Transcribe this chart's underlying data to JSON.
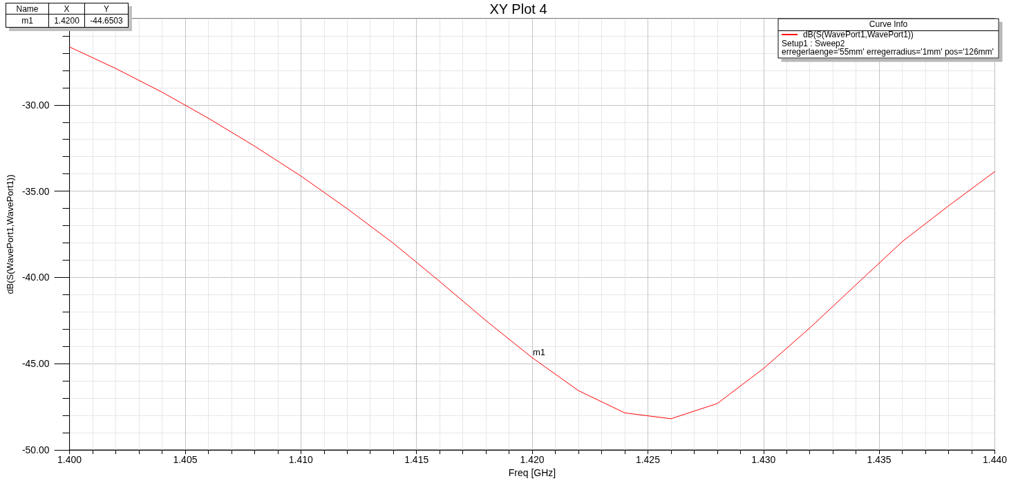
{
  "chart_data": {
    "type": "line",
    "title": "XY Plot 4",
    "xlabel": "Freq [GHz]",
    "ylabel": "dB(S(WavePort1,WavePort1))",
    "legend_title": "Curve Info",
    "x": [
      1.4,
      1.402,
      1.404,
      1.406,
      1.408,
      1.41,
      1.412,
      1.414,
      1.416,
      1.418,
      1.42,
      1.422,
      1.424,
      1.426,
      1.428,
      1.43,
      1.432,
      1.434,
      1.436,
      1.438,
      1.44
    ],
    "series": [
      {
        "name": "dB(S(WavePort1,WavePort1))",
        "color": "#ff0000",
        "values": [
          -26.64,
          -27.89,
          -29.26,
          -30.77,
          -32.39,
          -34.12,
          -36.01,
          -38.02,
          -40.23,
          -42.5,
          -44.6503,
          -46.56,
          -47.85,
          -48.19,
          -47.31,
          -45.28,
          -42.93,
          -40.42,
          -37.92,
          -35.85,
          -33.86
        ]
      }
    ],
    "xlim": [
      1.4,
      1.44
    ],
    "xticks": [
      {
        "value": 1.4,
        "label": "1.400"
      },
      {
        "value": 1.401,
        "label": null
      },
      {
        "value": 1.402,
        "label": null
      },
      {
        "value": 1.403,
        "label": null
      },
      {
        "value": 1.404,
        "label": null
      },
      {
        "value": 1.405,
        "label": "1.405"
      },
      {
        "value": 1.406,
        "label": null
      },
      {
        "value": 1.407,
        "label": null
      },
      {
        "value": 1.408,
        "label": null
      },
      {
        "value": 1.409,
        "label": null
      },
      {
        "value": 1.41,
        "label": "1.410"
      },
      {
        "value": 1.411,
        "label": null
      },
      {
        "value": 1.412,
        "label": null
      },
      {
        "value": 1.413,
        "label": null
      },
      {
        "value": 1.414,
        "label": null
      },
      {
        "value": 1.415,
        "label": "1.415"
      },
      {
        "value": 1.416,
        "label": null
      },
      {
        "value": 1.417,
        "label": null
      },
      {
        "value": 1.418,
        "label": null
      },
      {
        "value": 1.419,
        "label": null
      },
      {
        "value": 1.42,
        "label": "1.420"
      },
      {
        "value": 1.421,
        "label": null
      },
      {
        "value": 1.422,
        "label": null
      },
      {
        "value": 1.423,
        "label": null
      },
      {
        "value": 1.424,
        "label": null
      },
      {
        "value": 1.425,
        "label": "1.425"
      },
      {
        "value": 1.426,
        "label": null
      },
      {
        "value": 1.427,
        "label": null
      },
      {
        "value": 1.428,
        "label": null
      },
      {
        "value": 1.429,
        "label": null
      },
      {
        "value": 1.43,
        "label": "1.430"
      },
      {
        "value": 1.431,
        "label": null
      },
      {
        "value": 1.432,
        "label": null
      },
      {
        "value": 1.433,
        "label": null
      },
      {
        "value": 1.434,
        "label": null
      },
      {
        "value": 1.435,
        "label": "1.435"
      },
      {
        "value": 1.436,
        "label": null
      },
      {
        "value": 1.437,
        "label": null
      },
      {
        "value": 1.438,
        "label": null
      },
      {
        "value": 1.439,
        "label": null
      },
      {
        "value": 1.44,
        "label": "1.440"
      }
    ],
    "ylim": [
      -50,
      -25
    ],
    "yticks": [
      {
        "value": -50,
        "label": "-50.00"
      },
      {
        "value": -49,
        "label": null
      },
      {
        "value": -48,
        "label": null
      },
      {
        "value": -47,
        "label": null
      },
      {
        "value": -46,
        "label": null
      },
      {
        "value": -45,
        "label": "-45.00"
      },
      {
        "value": -44,
        "label": null
      },
      {
        "value": -43,
        "label": null
      },
      {
        "value": -42,
        "label": null
      },
      {
        "value": -41,
        "label": null
      },
      {
        "value": -40,
        "label": "-40.00"
      },
      {
        "value": -39,
        "label": null
      },
      {
        "value": -38,
        "label": null
      },
      {
        "value": -37,
        "label": null
      },
      {
        "value": -36,
        "label": null
      },
      {
        "value": -35,
        "label": "-35.00"
      },
      {
        "value": -34,
        "label": null
      },
      {
        "value": -33,
        "label": null
      },
      {
        "value": -32,
        "label": null
      },
      {
        "value": -31,
        "label": null
      },
      {
        "value": -30,
        "label": "-30.00"
      },
      {
        "value": -29,
        "label": null
      },
      {
        "value": -28,
        "label": null
      },
      {
        "value": -27,
        "label": null
      },
      {
        "value": -26,
        "label": null
      },
      {
        "value": -25,
        "label": null
      }
    ],
    "annotations": [
      {
        "text": "m1",
        "x": 1.42,
        "y": -44.6503
      },
      "Setup1 : Sweep2",
      "erregerlaenge='55mm' erregerradius='1mm' pos='126mm'",
      "Name",
      "X",
      "Y",
      "m1",
      "1.4200",
      "-44.6503"
    ],
    "grid": true,
    "legend": "top right",
    "marker": "none",
    "line_style": "solid"
  }
}
